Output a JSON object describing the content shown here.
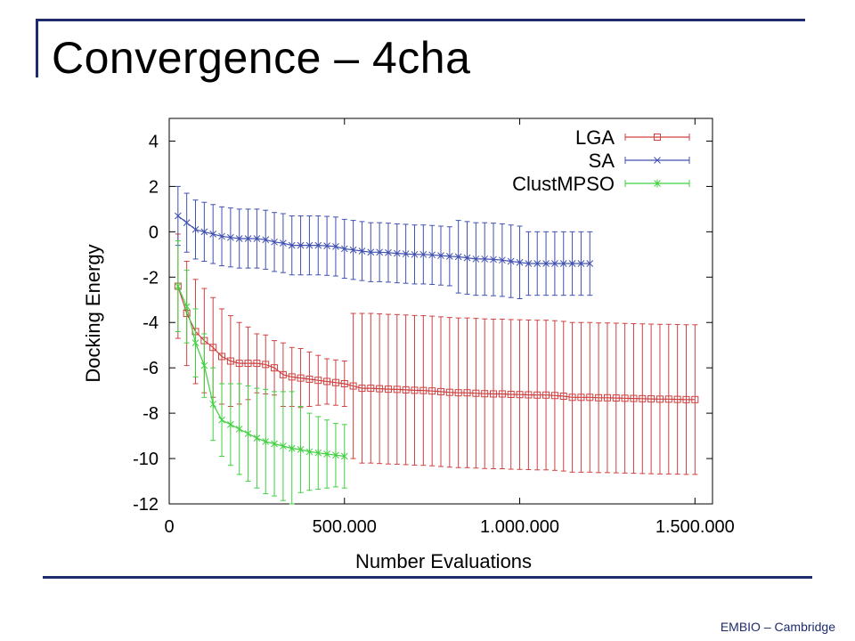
{
  "slide": {
    "title": "Convergence – 4cha",
    "footer": "EMBIO – Cambridge"
  },
  "chart_data": {
    "type": "line",
    "xlabel": "Number Evaluations",
    "ylabel": "Docking Energy",
    "xlim": [
      0,
      1550000
    ],
    "ylim": [
      -12,
      5
    ],
    "xticks": [
      0,
      500000,
      1000000,
      1500000
    ],
    "xtick_labels": [
      "0",
      "500.000",
      "1.000.000",
      "1.500.000"
    ],
    "yticks": [
      4,
      2,
      0,
      -2,
      -4,
      -6,
      -8,
      -10,
      -12
    ],
    "ytick_labels": [
      "4",
      "2",
      "0",
      "-2",
      "-4",
      "-6",
      "-8",
      "-10",
      "-12"
    ],
    "grid": false,
    "legend_position": "top-right",
    "error_bars": true,
    "series": [
      {
        "name": "LGA",
        "color": "#d04040",
        "marker": "square",
        "x": [
          25000,
          50000,
          75000,
          100000,
          125000,
          150000,
          175000,
          200000,
          225000,
          250000,
          275000,
          300000,
          325000,
          350000,
          375000,
          400000,
          425000,
          450000,
          475000,
          500000,
          525000,
          550000,
          575000,
          600000,
          625000,
          650000,
          675000,
          700000,
          725000,
          750000,
          775000,
          800000,
          825000,
          850000,
          875000,
          900000,
          925000,
          950000,
          975000,
          1000000,
          1025000,
          1050000,
          1075000,
          1100000,
          1125000,
          1150000,
          1175000,
          1200000,
          1225000,
          1250000,
          1275000,
          1300000,
          1325000,
          1350000,
          1375000,
          1400000,
          1425000,
          1450000,
          1475000,
          1500000
        ],
        "y": [
          -2.4,
          -3.6,
          -4.4,
          -4.8,
          -5.1,
          -5.5,
          -5.7,
          -5.8,
          -5.8,
          -5.8,
          -5.85,
          -6.0,
          -6.3,
          -6.4,
          -6.45,
          -6.5,
          -6.55,
          -6.6,
          -6.65,
          -6.7,
          -6.8,
          -6.9,
          -6.9,
          -6.92,
          -6.94,
          -6.95,
          -6.97,
          -6.99,
          -7.0,
          -7.02,
          -7.05,
          -7.08,
          -7.1,
          -7.1,
          -7.12,
          -7.14,
          -7.15,
          -7.15,
          -7.17,
          -7.18,
          -7.19,
          -7.2,
          -7.2,
          -7.22,
          -7.25,
          -7.3,
          -7.3,
          -7.3,
          -7.32,
          -7.32,
          -7.33,
          -7.34,
          -7.35,
          -7.36,
          -7.37,
          -7.38,
          -7.38,
          -7.39,
          -7.4,
          -7.4
        ],
        "err": [
          2.3,
          2.3,
          2.3,
          2.3,
          2.2,
          2.1,
          2.0,
          1.8,
          1.6,
          1.3,
          1.3,
          1.2,
          1.4,
          1.3,
          1.3,
          1.2,
          1.1,
          1.0,
          1.0,
          1.0,
          3.2,
          3.3,
          3.3,
          3.3,
          3.3,
          3.3,
          3.3,
          3.3,
          3.3,
          3.3,
          3.3,
          3.3,
          3.3,
          3.3,
          3.3,
          3.3,
          3.3,
          3.3,
          3.3,
          3.3,
          3.3,
          3.3,
          3.3,
          3.3,
          3.3,
          3.3,
          3.3,
          3.3,
          3.3,
          3.3,
          3.3,
          3.3,
          3.3,
          3.3,
          3.3,
          3.3,
          3.3,
          3.3,
          3.3,
          3.3
        ]
      },
      {
        "name": "SA",
        "color": "#4050b0",
        "marker": "x",
        "x": [
          25000,
          50000,
          75000,
          100000,
          125000,
          150000,
          175000,
          200000,
          225000,
          250000,
          275000,
          300000,
          325000,
          350000,
          375000,
          400000,
          425000,
          450000,
          475000,
          500000,
          525000,
          550000,
          575000,
          600000,
          625000,
          650000,
          675000,
          700000,
          725000,
          750000,
          775000,
          800000,
          825000,
          850000,
          875000,
          900000,
          925000,
          950000,
          975000,
          1000000,
          1025000,
          1050000,
          1075000,
          1100000,
          1125000,
          1150000,
          1175000,
          1200000
        ],
        "y": [
          0.7,
          0.4,
          0.1,
          0.0,
          -0.1,
          -0.2,
          -0.25,
          -0.3,
          -0.3,
          -0.3,
          -0.35,
          -0.45,
          -0.5,
          -0.6,
          -0.6,
          -0.6,
          -0.6,
          -0.62,
          -0.65,
          -0.75,
          -0.8,
          -0.85,
          -0.9,
          -0.9,
          -0.92,
          -0.95,
          -0.97,
          -1.0,
          -1.0,
          -1.02,
          -1.05,
          -1.08,
          -1.1,
          -1.15,
          -1.2,
          -1.2,
          -1.22,
          -1.25,
          -1.3,
          -1.35,
          -1.4,
          -1.4,
          -1.4,
          -1.4,
          -1.4,
          -1.4,
          -1.4,
          -1.4
        ],
        "err": [
          1.3,
          1.3,
          1.3,
          1.3,
          1.3,
          1.3,
          1.3,
          1.3,
          1.3,
          1.3,
          1.3,
          1.3,
          1.3,
          1.3,
          1.3,
          1.3,
          1.3,
          1.3,
          1.3,
          1.3,
          1.3,
          1.3,
          1.3,
          1.3,
          1.3,
          1.3,
          1.3,
          1.3,
          1.3,
          1.3,
          1.3,
          1.3,
          1.6,
          1.6,
          1.6,
          1.6,
          1.6,
          1.6,
          1.6,
          1.6,
          1.4,
          1.4,
          1.4,
          1.4,
          1.4,
          1.4,
          1.4,
          1.4
        ]
      },
      {
        "name": "ClustMPSO",
        "color": "#40d040",
        "marker": "star",
        "x": [
          25000,
          50000,
          75000,
          100000,
          125000,
          150000,
          175000,
          200000,
          225000,
          250000,
          275000,
          300000,
          325000,
          350000,
          375000,
          400000,
          425000,
          450000,
          475000,
          500000
        ],
        "y": [
          -2.4,
          -3.3,
          -4.9,
          -5.9,
          -7.6,
          -8.3,
          -8.5,
          -8.7,
          -8.9,
          -9.1,
          -9.25,
          -9.35,
          -9.45,
          -9.55,
          -9.6,
          -9.7,
          -9.75,
          -9.8,
          -9.85,
          -9.9
        ],
        "err": [
          2.0,
          1.6,
          1.5,
          1.4,
          1.6,
          1.6,
          1.8,
          2.0,
          2.1,
          2.2,
          2.3,
          2.3,
          2.4,
          2.5,
          1.9,
          1.7,
          1.6,
          1.5,
          1.4,
          1.4
        ]
      }
    ]
  }
}
